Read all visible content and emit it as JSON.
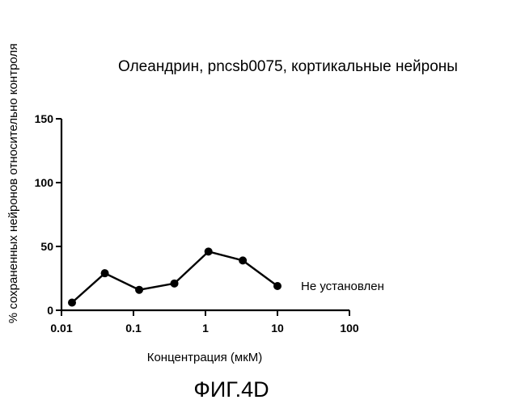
{
  "chart_data": {
    "type": "line",
    "title": "Олеандрин, pncsb0075, кортикальные нейроны",
    "xlabel": "Концентрация (мкМ)",
    "ylabel": "% сохраненных нейронов относительно контроля",
    "x_scale": "log",
    "xlim": [
      0.01,
      100
    ],
    "ylim": [
      0,
      150
    ],
    "x_ticks": [
      "0.01",
      "0.1",
      "1",
      "10",
      "100"
    ],
    "y_ticks": [
      "0",
      "50",
      "100",
      "150"
    ],
    "grid": false,
    "series": [
      {
        "x": [
          0.014,
          0.04,
          0.12,
          0.37,
          1.1,
          3.3,
          10
        ],
        "y": [
          6,
          29,
          16,
          21,
          46,
          39,
          19
        ]
      }
    ],
    "annotation": "Не установлен",
    "figure_label": "ФИГ.4D"
  }
}
